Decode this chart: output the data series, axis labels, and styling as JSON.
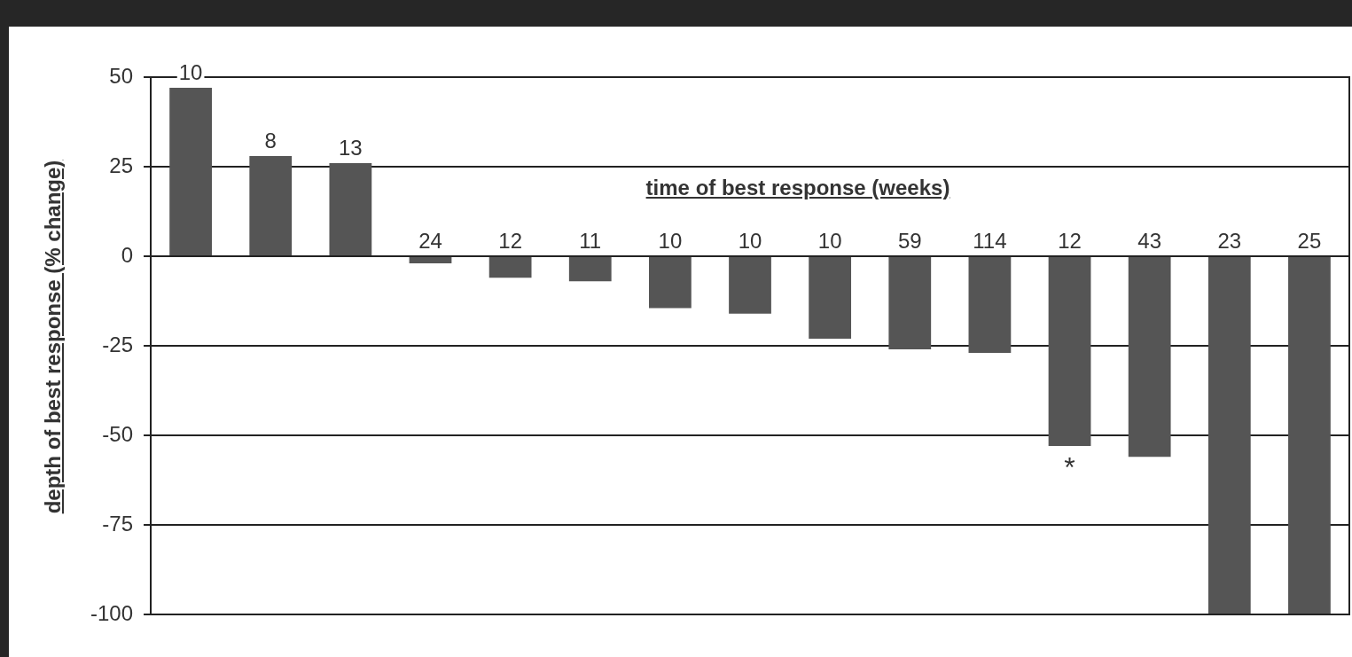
{
  "chart_data": {
    "type": "bar",
    "ylabel": "depth of best response (% change)",
    "xlabel": "time of best response (weeks)",
    "categories": [
      "10",
      "8",
      "13",
      "24",
      "12",
      "11",
      "10",
      "10",
      "10",
      "59",
      "114",
      "12",
      "43",
      "23",
      "25"
    ],
    "values": [
      47,
      28,
      26,
      -2,
      -6,
      -7,
      -14.5,
      -16,
      -23,
      -26,
      -27,
      -53,
      -56,
      -100,
      -100
    ],
    "color": "#555555",
    "ylim": [
      -100,
      50
    ],
    "yticks": [
      -100,
      -75,
      -50,
      -25,
      0,
      25,
      50
    ],
    "grid": "y",
    "legend": false,
    "annotations": [
      "*"
    ]
  }
}
